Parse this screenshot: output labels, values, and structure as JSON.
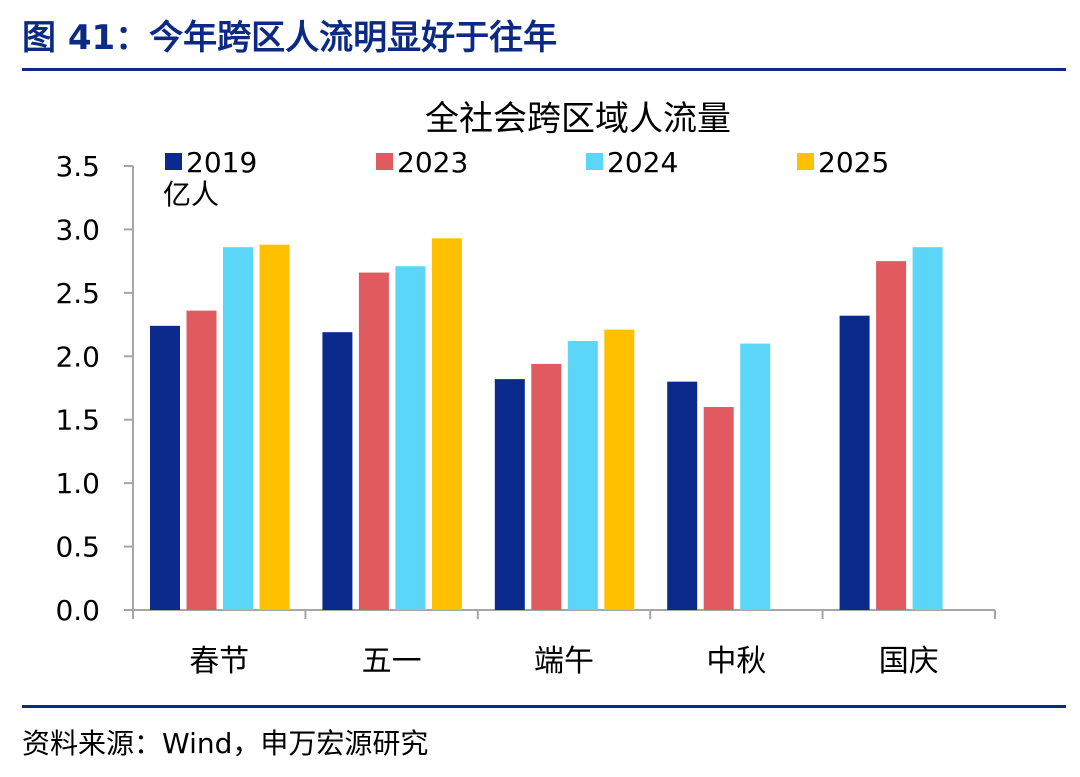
{
  "figure_title": "图 41：今年跨区人流明显好于往年",
  "source": "资料来源：Wind，申万宏源研究",
  "chart_data": {
    "type": "bar",
    "title": "全社会跨区域人流量",
    "unit_label": "亿人",
    "categories": [
      "春节",
      "五一",
      "端午",
      "中秋",
      "国庆"
    ],
    "series": [
      {
        "name": "2019",
        "color": "#0a2a8c",
        "values": [
          2.24,
          2.19,
          1.82,
          1.8,
          2.32
        ]
      },
      {
        "name": "2023",
        "color": "#e05a5f",
        "values": [
          2.36,
          2.66,
          1.94,
          1.6,
          2.75
        ]
      },
      {
        "name": "2024",
        "color": "#5bd6f8",
        "values": [
          2.86,
          2.71,
          2.12,
          2.1,
          2.86
        ]
      },
      {
        "name": "2025",
        "color": "#ffc000",
        "values": [
          2.88,
          2.93,
          2.21,
          null,
          null
        ]
      }
    ],
    "y_ticks": [
      "0.0",
      "0.5",
      "1.0",
      "1.5",
      "2.0",
      "2.5",
      "3.0",
      "3.5"
    ],
    "ylim": [
      0,
      3.5
    ],
    "grid": false,
    "legend_position": "top"
  }
}
